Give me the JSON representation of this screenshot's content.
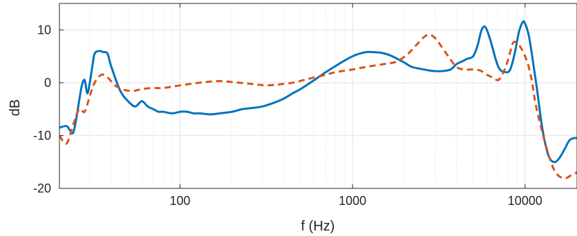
{
  "chart_data": {
    "type": "line",
    "title": "",
    "xlabel": "f (Hz)",
    "ylabel": "dB",
    "xscale": "log",
    "xlim": [
      20,
      20000
    ],
    "ylim": [
      -20,
      15
    ],
    "x_ticks": [
      100,
      1000,
      10000
    ],
    "x_tick_labels": [
      "100",
      "1000",
      "10000"
    ],
    "y_ticks": [
      10,
      0,
      -10,
      -20
    ],
    "y_tick_labels": [
      "10",
      "0",
      "-10",
      "-20"
    ],
    "grid": true,
    "legend": "none",
    "series": [
      {
        "style": "solid",
        "color": "#0072BD",
        "x": [
          20,
          22,
          23,
          24,
          25,
          26,
          27,
          28,
          29,
          30,
          31,
          32,
          34,
          36,
          38,
          40,
          45,
          50,
          55,
          60,
          65,
          70,
          75,
          80,
          90,
          100,
          110,
          120,
          130,
          150,
          170,
          200,
          230,
          260,
          300,
          350,
          400,
          450,
          500,
          600,
          700,
          800,
          900,
          1000,
          1100,
          1200,
          1300,
          1500,
          1700,
          2000,
          2200,
          2500,
          2800,
          3000,
          3300,
          3700,
          4000,
          4300,
          4600,
          5000,
          5300,
          5600,
          5900,
          6300,
          7000,
          7700,
          8200,
          8700,
          9200,
          9700,
          10000,
          10500,
          11000,
          11700,
          12500,
          13300,
          14000,
          15000,
          16000,
          17000,
          18000,
          19000,
          20000
        ],
        "y": [
          -8.5,
          -8.2,
          -9.0,
          -9.5,
          -7.0,
          -3.5,
          -0.5,
          0.5,
          -2.0,
          0.0,
          3.0,
          5.5,
          6.0,
          5.8,
          5.5,
          3.0,
          -1.5,
          -3.5,
          -4.5,
          -3.5,
          -4.5,
          -5.0,
          -5.5,
          -5.5,
          -5.8,
          -5.5,
          -5.5,
          -5.8,
          -5.8,
          -6.0,
          -5.8,
          -5.5,
          -5.0,
          -4.8,
          -4.5,
          -3.8,
          -3.0,
          -2.0,
          -1.2,
          0.5,
          2.0,
          3.2,
          4.2,
          5.0,
          5.5,
          5.8,
          5.8,
          5.6,
          5.0,
          3.8,
          3.0,
          2.6,
          2.3,
          2.2,
          2.2,
          2.5,
          3.5,
          4.0,
          4.5,
          5.0,
          7.0,
          10.0,
          10.5,
          8.0,
          3.0,
          2.0,
          2.5,
          5.5,
          9.5,
          11.5,
          11.2,
          9.0,
          5.0,
          -1.0,
          -8.0,
          -12.5,
          -14.5,
          -15.0,
          -14.0,
          -12.5,
          -11.0,
          -10.5,
          -10.5
        ]
      },
      {
        "style": "dashed",
        "color": "#D95319",
        "x": [
          20,
          22,
          24,
          26,
          28,
          30,
          32,
          35,
          38,
          42,
          46,
          50,
          55,
          60,
          70,
          80,
          100,
          130,
          170,
          220,
          270,
          320,
          380,
          450,
          520,
          600,
          700,
          800,
          1000,
          1200,
          1500,
          1800,
          2100,
          2400,
          2700,
          3000,
          3500,
          4000,
          4500,
          5000,
          5500,
          6000,
          6500,
          7000,
          7500,
          8000,
          8500,
          9000,
          9500,
          10000,
          10500,
          11000,
          11500,
          12500,
          13500,
          14500,
          15500,
          16500,
          17500,
          18500,
          20000
        ],
        "y": [
          -10.0,
          -11.5,
          -8.0,
          -5.0,
          -5.5,
          -2.5,
          0.0,
          1.5,
          1.0,
          -0.5,
          -1.2,
          -1.5,
          -1.5,
          -1.2,
          -1.0,
          -1.0,
          -0.5,
          0.0,
          0.3,
          0.0,
          -0.3,
          -0.5,
          -0.3,
          0.0,
          0.5,
          1.0,
          1.5,
          2.0,
          2.5,
          3.0,
          3.5,
          4.0,
          5.5,
          7.5,
          9.0,
          8.5,
          5.5,
          3.0,
          2.5,
          2.5,
          2.3,
          1.5,
          1.0,
          0.5,
          2.0,
          4.5,
          7.5,
          7.5,
          6.5,
          5.0,
          3.0,
          0.0,
          -4.0,
          -9.0,
          -13.0,
          -16.0,
          -17.5,
          -18.0,
          -18.0,
          -17.5,
          -17.0
        ]
      }
    ]
  }
}
